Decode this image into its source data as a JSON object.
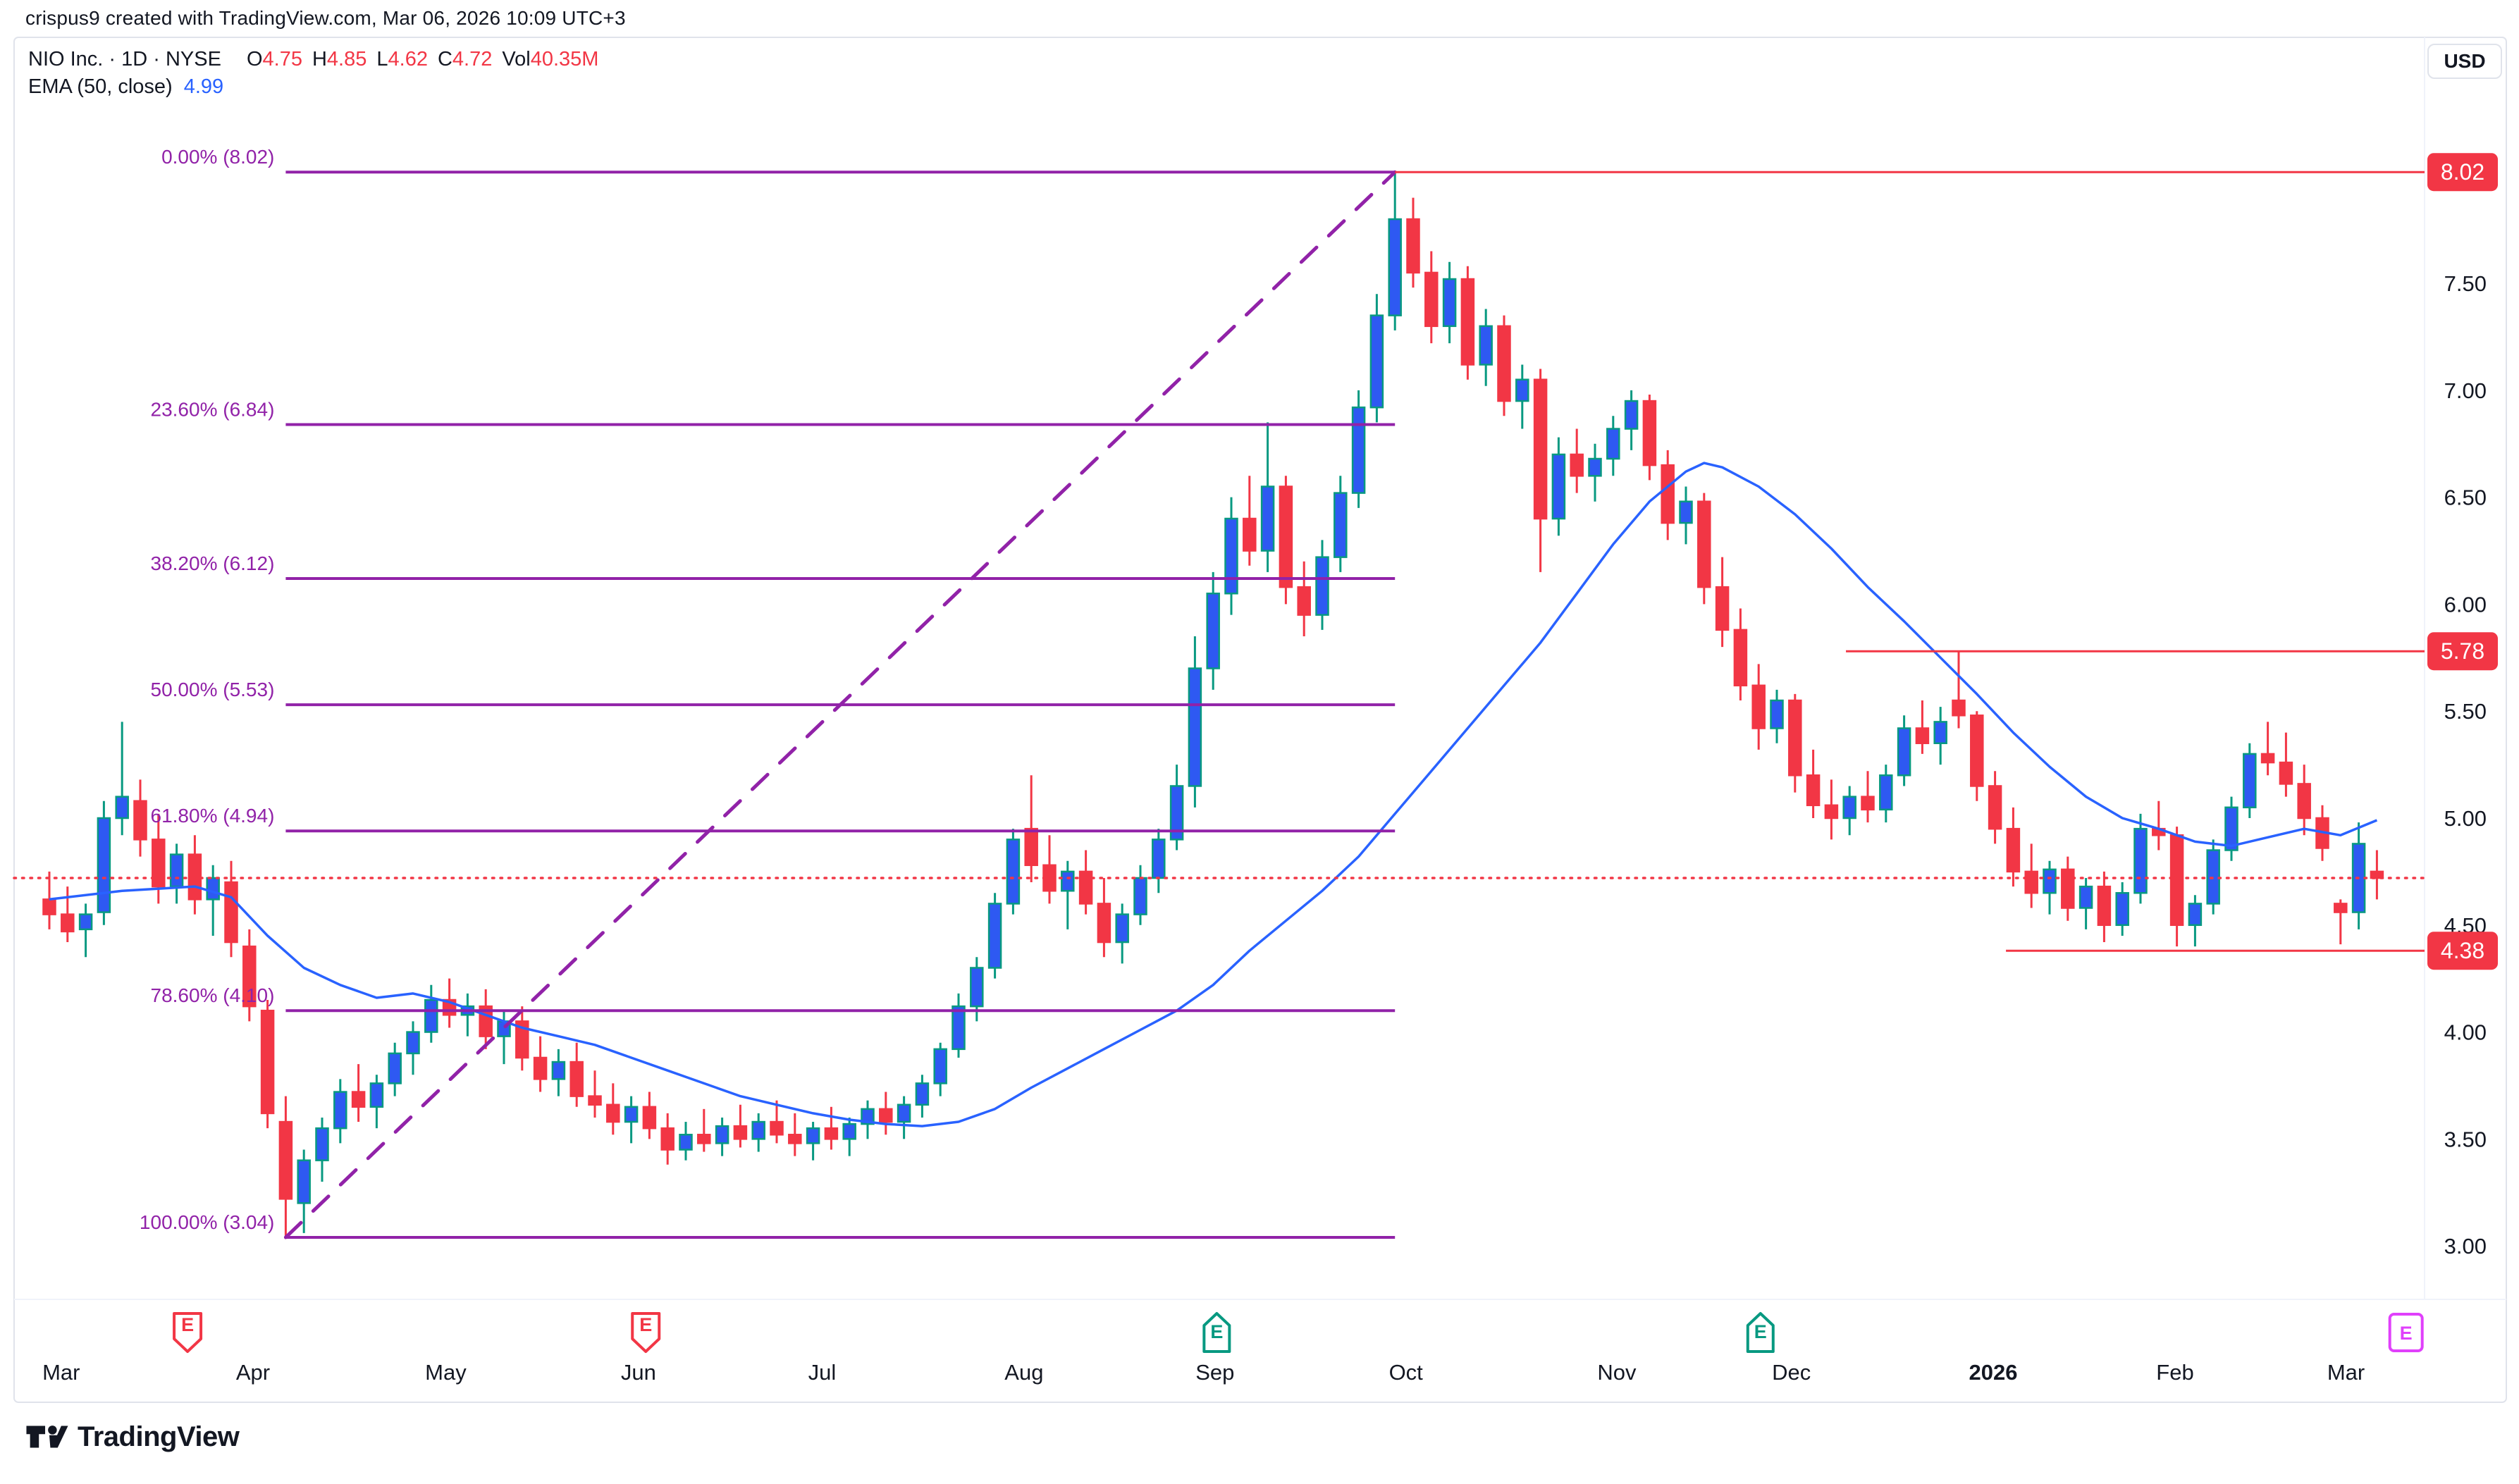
{
  "attribution": "crispus9 created with TradingView.com, Mar 06, 2026 10:09 UTC+3",
  "legend": {
    "title": "NIO Inc. · 1D · NYSE",
    "o_label": "O",
    "o": "4.75",
    "h_label": "H",
    "h": "4.85",
    "l_label": "L",
    "l": "4.62",
    "c_label": "C",
    "c": "4.72",
    "vol_label": "Vol",
    "vol": "40.35M",
    "ema_label": "EMA (50, close)",
    "ema_value": "4.99"
  },
  "price_axis": {
    "currency": "USD",
    "ticks": [
      7.5,
      7.0,
      6.5,
      6.0,
      5.5,
      5.0,
      4.5,
      4.0,
      3.5,
      3.0
    ]
  },
  "footer": {
    "logo_text": "TradingView"
  },
  "colors": {
    "up_body": "#2E59F2",
    "up_wick": "#089981",
    "down": "#F23645",
    "ema": "#2962FF",
    "fib": "#9122A8",
    "price_line": "#F23645",
    "label_bg": "#F23645",
    "label_fg": "#FFFFFF",
    "text": "#131722",
    "frame": "#E0E3EB",
    "separator": "#F0F3FA",
    "earnings_past": "#F23645",
    "earnings_confirmed": "#089981",
    "earnings_upcoming": "#E040FB"
  },
  "chart_data": {
    "type": "candlestick",
    "symbol": "NIO Inc.",
    "interval": "1D",
    "exchange": "NYSE",
    "y_domain": {
      "min": 2.75,
      "max": 8.65
    },
    "months": [
      {
        "label": "Mar",
        "i": 0.65
      },
      {
        "label": "Apr",
        "i": 11.2
      },
      {
        "label": "May",
        "i": 21.8
      },
      {
        "label": "Jun",
        "i": 32.4
      },
      {
        "label": "Jul",
        "i": 42.5
      },
      {
        "label": "Aug",
        "i": 53.6
      },
      {
        "label": "Sep",
        "i": 64.1
      },
      {
        "label": "Oct",
        "i": 74.6
      },
      {
        "label": "Nov",
        "i": 86.2
      },
      {
        "label": "Dec",
        "i": 95.8
      },
      {
        "label": "2026",
        "i": 106.9,
        "bold": true
      },
      {
        "label": "Feb",
        "i": 116.9
      },
      {
        "label": "Mar",
        "i": 126.3
      }
    ],
    "earnings": [
      {
        "i": 7.6,
        "variant": "flag-down",
        "letter": "E"
      },
      {
        "i": 32.8,
        "variant": "flag-down",
        "letter": "E"
      },
      {
        "i": 64.2,
        "variant": "flag-up",
        "letter": "E"
      },
      {
        "i": 94.1,
        "variant": "flag-up",
        "letter": "E"
      },
      {
        "i": 129.6,
        "variant": "rect",
        "letter": "E"
      }
    ],
    "fib": {
      "from_bar": 13,
      "to_bar": 74,
      "levels": [
        {
          "pct": "0.00%",
          "price": 8.02
        },
        {
          "pct": "23.60%",
          "price": 6.84
        },
        {
          "pct": "38.20%",
          "price": 6.12
        },
        {
          "pct": "50.00%",
          "price": 5.53
        },
        {
          "pct": "61.80%",
          "price": 4.94
        },
        {
          "pct": "78.60%",
          "price": 4.1
        },
        {
          "pct": "100.00%",
          "price": 3.04
        }
      ]
    },
    "trend_line": {
      "from_bar": 13,
      "from_price": 3.04,
      "to_bar": 74,
      "to_price": 8.02
    },
    "price_lines": [
      {
        "price": 8.02,
        "label": "8.02",
        "from_bar": 74
      },
      {
        "price": 5.78,
        "label": "5.78",
        "from_bar": 98.8
      },
      {
        "price": 4.38,
        "label": "4.38",
        "from_bar": 107.6
      }
    ],
    "close_line": {
      "price": 4.72
    },
    "ema": [
      [
        0,
        4.62
      ],
      [
        4,
        4.66
      ],
      [
        8,
        4.68
      ],
      [
        10,
        4.63
      ],
      [
        12,
        4.45
      ],
      [
        14,
        4.3
      ],
      [
        16,
        4.22
      ],
      [
        18,
        4.16
      ],
      [
        20,
        4.18
      ],
      [
        22,
        4.14
      ],
      [
        24,
        4.08
      ],
      [
        26,
        4.02
      ],
      [
        28,
        3.98
      ],
      [
        30,
        3.94
      ],
      [
        32,
        3.88
      ],
      [
        34,
        3.82
      ],
      [
        36,
        3.76
      ],
      [
        38,
        3.7
      ],
      [
        40,
        3.66
      ],
      [
        42,
        3.62
      ],
      [
        44,
        3.59
      ],
      [
        46,
        3.57
      ],
      [
        48,
        3.56
      ],
      [
        50,
        3.58
      ],
      [
        52,
        3.64
      ],
      [
        54,
        3.74
      ],
      [
        56,
        3.83
      ],
      [
        58,
        3.92
      ],
      [
        60,
        4.01
      ],
      [
        62,
        4.1
      ],
      [
        64,
        4.22
      ],
      [
        66,
        4.38
      ],
      [
        68,
        4.52
      ],
      [
        70,
        4.66
      ],
      [
        72,
        4.82
      ],
      [
        74,
        5.02
      ],
      [
        76,
        5.22
      ],
      [
        78,
        5.42
      ],
      [
        80,
        5.62
      ],
      [
        82,
        5.82
      ],
      [
        84,
        6.05
      ],
      [
        86,
        6.28
      ],
      [
        88,
        6.48
      ],
      [
        90,
        6.62
      ],
      [
        91,
        6.66
      ],
      [
        92,
        6.64
      ],
      [
        94,
        6.55
      ],
      [
        96,
        6.42
      ],
      [
        98,
        6.26
      ],
      [
        100,
        6.08
      ],
      [
        102,
        5.92
      ],
      [
        104,
        5.75
      ],
      [
        106,
        5.58
      ],
      [
        108,
        5.4
      ],
      [
        110,
        5.24
      ],
      [
        112,
        5.1
      ],
      [
        114,
        5.0
      ],
      [
        116,
        4.95
      ],
      [
        118,
        4.89
      ],
      [
        120,
        4.87
      ],
      [
        122,
        4.91
      ],
      [
        124,
        4.95
      ],
      [
        126,
        4.92
      ],
      [
        128,
        4.99
      ]
    ],
    "candles": [
      [
        4.62,
        4.75,
        4.48,
        4.55
      ],
      [
        4.55,
        4.68,
        4.42,
        4.47
      ],
      [
        4.48,
        4.6,
        4.35,
        4.55
      ],
      [
        4.56,
        5.08,
        4.5,
        5.0
      ],
      [
        5.0,
        5.45,
        4.92,
        5.1
      ],
      [
        5.08,
        5.18,
        4.82,
        4.9
      ],
      [
        4.9,
        5.02,
        4.6,
        4.68
      ],
      [
        4.68,
        4.88,
        4.6,
        4.83
      ],
      [
        4.83,
        4.92,
        4.55,
        4.62
      ],
      [
        4.62,
        4.78,
        4.45,
        4.72
      ],
      [
        4.7,
        4.8,
        4.35,
        4.42
      ],
      [
        4.4,
        4.48,
        4.05,
        4.12
      ],
      [
        4.1,
        4.15,
        3.55,
        3.62
      ],
      [
        3.58,
        3.7,
        3.04,
        3.22
      ],
      [
        3.2,
        3.45,
        3.06,
        3.4
      ],
      [
        3.4,
        3.6,
        3.3,
        3.55
      ],
      [
        3.55,
        3.78,
        3.48,
        3.72
      ],
      [
        3.72,
        3.85,
        3.58,
        3.65
      ],
      [
        3.65,
        3.8,
        3.55,
        3.76
      ],
      [
        3.76,
        3.95,
        3.7,
        3.9
      ],
      [
        3.9,
        4.05,
        3.8,
        4.0
      ],
      [
        4.0,
        4.22,
        3.95,
        4.15
      ],
      [
        4.15,
        4.25,
        4.02,
        4.08
      ],
      [
        4.08,
        4.18,
        3.98,
        4.12
      ],
      [
        4.12,
        4.2,
        3.92,
        3.98
      ],
      [
        3.98,
        4.1,
        3.85,
        4.05
      ],
      [
        4.05,
        4.12,
        3.82,
        3.88
      ],
      [
        3.88,
        3.98,
        3.72,
        3.78
      ],
      [
        3.78,
        3.92,
        3.7,
        3.86
      ],
      [
        3.86,
        3.95,
        3.65,
        3.7
      ],
      [
        3.7,
        3.82,
        3.6,
        3.66
      ],
      [
        3.66,
        3.76,
        3.52,
        3.58
      ],
      [
        3.58,
        3.7,
        3.48,
        3.65
      ],
      [
        3.65,
        3.72,
        3.5,
        3.55
      ],
      [
        3.55,
        3.62,
        3.38,
        3.45
      ],
      [
        3.45,
        3.58,
        3.4,
        3.52
      ],
      [
        3.52,
        3.64,
        3.44,
        3.48
      ],
      [
        3.48,
        3.6,
        3.42,
        3.56
      ],
      [
        3.56,
        3.66,
        3.46,
        3.5
      ],
      [
        3.5,
        3.62,
        3.44,
        3.58
      ],
      [
        3.58,
        3.68,
        3.48,
        3.52
      ],
      [
        3.52,
        3.62,
        3.42,
        3.48
      ],
      [
        3.48,
        3.58,
        3.4,
        3.55
      ],
      [
        3.55,
        3.65,
        3.45,
        3.5
      ],
      [
        3.5,
        3.6,
        3.42,
        3.57
      ],
      [
        3.57,
        3.68,
        3.5,
        3.64
      ],
      [
        3.64,
        3.72,
        3.52,
        3.58
      ],
      [
        3.58,
        3.7,
        3.5,
        3.66
      ],
      [
        3.66,
        3.8,
        3.6,
        3.76
      ],
      [
        3.76,
        3.95,
        3.7,
        3.92
      ],
      [
        3.92,
        4.18,
        3.88,
        4.12
      ],
      [
        4.12,
        4.35,
        4.05,
        4.3
      ],
      [
        4.3,
        4.65,
        4.25,
        4.6
      ],
      [
        4.6,
        4.95,
        4.55,
        4.9
      ],
      [
        4.95,
        5.2,
        4.7,
        4.78
      ],
      [
        4.78,
        4.92,
        4.6,
        4.66
      ],
      [
        4.66,
        4.8,
        4.48,
        4.75
      ],
      [
        4.75,
        4.85,
        4.55,
        4.6
      ],
      [
        4.6,
        4.72,
        4.35,
        4.42
      ],
      [
        4.42,
        4.6,
        4.32,
        4.55
      ],
      [
        4.55,
        4.78,
        4.5,
        4.72
      ],
      [
        4.72,
        4.95,
        4.65,
        4.9
      ],
      [
        4.9,
        5.25,
        4.85,
        5.15
      ],
      [
        5.15,
        5.85,
        5.05,
        5.7
      ],
      [
        5.7,
        6.15,
        5.6,
        6.05
      ],
      [
        6.05,
        6.5,
        5.95,
        6.4
      ],
      [
        6.4,
        6.6,
        6.18,
        6.25
      ],
      [
        6.25,
        6.85,
        6.15,
        6.55
      ],
      [
        6.55,
        6.6,
        6.0,
        6.08
      ],
      [
        6.08,
        6.2,
        5.85,
        5.95
      ],
      [
        5.95,
        6.3,
        5.88,
        6.22
      ],
      [
        6.22,
        6.6,
        6.15,
        6.52
      ],
      [
        6.52,
        7.0,
        6.45,
        6.92
      ],
      [
        6.92,
        7.45,
        6.85,
        7.35
      ],
      [
        7.35,
        8.02,
        7.28,
        7.8
      ],
      [
        7.8,
        7.9,
        7.48,
        7.55
      ],
      [
        7.55,
        7.65,
        7.22,
        7.3
      ],
      [
        7.3,
        7.6,
        7.22,
        7.52
      ],
      [
        7.52,
        7.58,
        7.05,
        7.12
      ],
      [
        7.12,
        7.38,
        7.02,
        7.3
      ],
      [
        7.3,
        7.35,
        6.88,
        6.95
      ],
      [
        6.95,
        7.12,
        6.82,
        7.05
      ],
      [
        7.05,
        7.1,
        6.15,
        6.4
      ],
      [
        6.4,
        6.78,
        6.32,
        6.7
      ],
      [
        6.7,
        6.82,
        6.52,
        6.6
      ],
      [
        6.6,
        6.75,
        6.48,
        6.68
      ],
      [
        6.68,
        6.88,
        6.6,
        6.82
      ],
      [
        6.82,
        7.0,
        6.72,
        6.95
      ],
      [
        6.95,
        6.98,
        6.58,
        6.65
      ],
      [
        6.65,
        6.72,
        6.3,
        6.38
      ],
      [
        6.38,
        6.55,
        6.28,
        6.48
      ],
      [
        6.48,
        6.52,
        6.0,
        6.08
      ],
      [
        6.08,
        6.22,
        5.8,
        5.88
      ],
      [
        5.88,
        5.98,
        5.55,
        5.62
      ],
      [
        5.62,
        5.72,
        5.32,
        5.42
      ],
      [
        5.42,
        5.6,
        5.35,
        5.55
      ],
      [
        5.55,
        5.58,
        5.12,
        5.2
      ],
      [
        5.2,
        5.32,
        5.0,
        5.06
      ],
      [
        5.06,
        5.18,
        4.9,
        5.0
      ],
      [
        5.0,
        5.15,
        4.92,
        5.1
      ],
      [
        5.1,
        5.22,
        4.98,
        5.04
      ],
      [
        5.04,
        5.25,
        4.98,
        5.2
      ],
      [
        5.2,
        5.48,
        5.15,
        5.42
      ],
      [
        5.42,
        5.55,
        5.3,
        5.35
      ],
      [
        5.35,
        5.52,
        5.25,
        5.45
      ],
      [
        5.55,
        5.78,
        5.42,
        5.48
      ],
      [
        5.48,
        5.5,
        5.08,
        5.15
      ],
      [
        5.15,
        5.22,
        4.88,
        4.95
      ],
      [
        4.95,
        5.05,
        4.68,
        4.75
      ],
      [
        4.75,
        4.88,
        4.58,
        4.65
      ],
      [
        4.65,
        4.8,
        4.55,
        4.76
      ],
      [
        4.76,
        4.82,
        4.52,
        4.58
      ],
      [
        4.58,
        4.72,
        4.48,
        4.68
      ],
      [
        4.68,
        4.75,
        4.42,
        4.5
      ],
      [
        4.5,
        4.7,
        4.45,
        4.65
      ],
      [
        4.65,
        5.02,
        4.6,
        4.95
      ],
      [
        4.95,
        5.08,
        4.85,
        4.92
      ],
      [
        4.92,
        4.96,
        4.4,
        4.5
      ],
      [
        4.5,
        4.64,
        4.4,
        4.6
      ],
      [
        4.6,
        4.9,
        4.55,
        4.85
      ],
      [
        4.85,
        5.1,
        4.8,
        5.05
      ],
      [
        5.05,
        5.35,
        5.0,
        5.3
      ],
      [
        5.3,
        5.45,
        5.2,
        5.26
      ],
      [
        5.26,
        5.4,
        5.1,
        5.16
      ],
      [
        5.16,
        5.25,
        4.92,
        5.0
      ],
      [
        5.0,
        5.06,
        4.8,
        4.86
      ],
      [
        4.6,
        4.62,
        4.41,
        4.56
      ],
      [
        4.56,
        4.98,
        4.48,
        4.88
      ],
      [
        4.75,
        4.85,
        4.62,
        4.72
      ]
    ]
  }
}
